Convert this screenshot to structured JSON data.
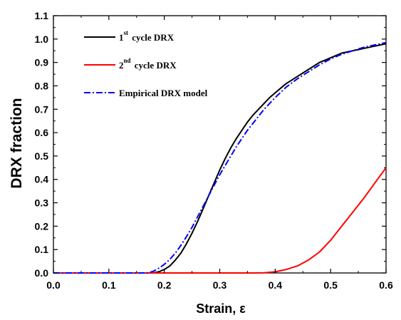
{
  "chart_data": {
    "type": "line",
    "xlabel": "Strain, ε",
    "ylabel": "DRX fraction",
    "xlim": [
      0.0,
      0.6
    ],
    "ylim": [
      0.0,
      1.1
    ],
    "x_ticks": [
      "0.0",
      "0.1",
      "0.2",
      "0.3",
      "0.4",
      "0.5",
      "0.6"
    ],
    "y_ticks": [
      "0.0",
      "0.1",
      "0.2",
      "0.3",
      "0.4",
      "0.5",
      "0.6",
      "0.7",
      "0.8",
      "0.9",
      "1.0",
      "1.1"
    ],
    "grid": false,
    "legend_position": "top-left",
    "legend": [
      {
        "prefix": "1",
        "sup": "st",
        "suffix": " cycle DRX"
      },
      {
        "prefix": "2",
        "sup": "nd",
        "suffix": " cycle DRX"
      },
      {
        "prefix": "Empirical DRX model",
        "sup": "",
        "suffix": ""
      }
    ],
    "series": [
      {
        "color": "#000000",
        "style": "solid",
        "x": [
          0.0,
          0.18,
          0.19,
          0.2,
          0.21,
          0.22,
          0.23,
          0.24,
          0.25,
          0.26,
          0.27,
          0.28,
          0.29,
          0.3,
          0.31,
          0.32,
          0.33,
          0.34,
          0.35,
          0.36,
          0.37,
          0.38,
          0.39,
          0.4,
          0.41,
          0.42,
          0.43,
          0.44,
          0.45,
          0.46,
          0.47,
          0.48,
          0.49,
          0.5,
          0.51,
          0.52,
          0.53,
          0.54,
          0.55,
          0.56,
          0.57,
          0.58,
          0.59,
          0.6
        ],
        "y": [
          0.0,
          0.0,
          0.005,
          0.015,
          0.03,
          0.055,
          0.085,
          0.125,
          0.17,
          0.22,
          0.275,
          0.33,
          0.385,
          0.44,
          0.49,
          0.535,
          0.575,
          0.61,
          0.645,
          0.675,
          0.7,
          0.725,
          0.75,
          0.77,
          0.79,
          0.81,
          0.825,
          0.84,
          0.855,
          0.87,
          0.885,
          0.9,
          0.91,
          0.92,
          0.93,
          0.94,
          0.945,
          0.95,
          0.955,
          0.96,
          0.965,
          0.97,
          0.975,
          0.98
        ]
      },
      {
        "color": "#ff0000",
        "style": "solid",
        "x": [
          0.0,
          0.36,
          0.38,
          0.4,
          0.42,
          0.44,
          0.46,
          0.48,
          0.5,
          0.52,
          0.54,
          0.56,
          0.58,
          0.6
        ],
        "y": [
          0.0,
          0.0,
          0.001,
          0.005,
          0.015,
          0.03,
          0.055,
          0.09,
          0.14,
          0.2,
          0.26,
          0.32,
          0.385,
          0.45
        ]
      },
      {
        "color": "#0000ff",
        "style": "dashdot",
        "x": [
          0.0,
          0.17,
          0.18,
          0.19,
          0.2,
          0.21,
          0.22,
          0.23,
          0.24,
          0.25,
          0.26,
          0.27,
          0.28,
          0.29,
          0.3,
          0.31,
          0.32,
          0.33,
          0.34,
          0.35,
          0.36,
          0.37,
          0.38,
          0.39,
          0.4,
          0.42,
          0.44,
          0.46,
          0.48,
          0.5,
          0.52,
          0.54,
          0.56,
          0.58,
          0.6
        ],
        "y": [
          0.0,
          0.0,
          0.007,
          0.02,
          0.037,
          0.058,
          0.085,
          0.118,
          0.155,
          0.195,
          0.24,
          0.285,
          0.33,
          0.375,
          0.42,
          0.46,
          0.5,
          0.54,
          0.575,
          0.61,
          0.64,
          0.67,
          0.7,
          0.725,
          0.75,
          0.795,
          0.83,
          0.86,
          0.89,
          0.915,
          0.935,
          0.95,
          0.965,
          0.975,
          0.985
        ]
      }
    ]
  }
}
